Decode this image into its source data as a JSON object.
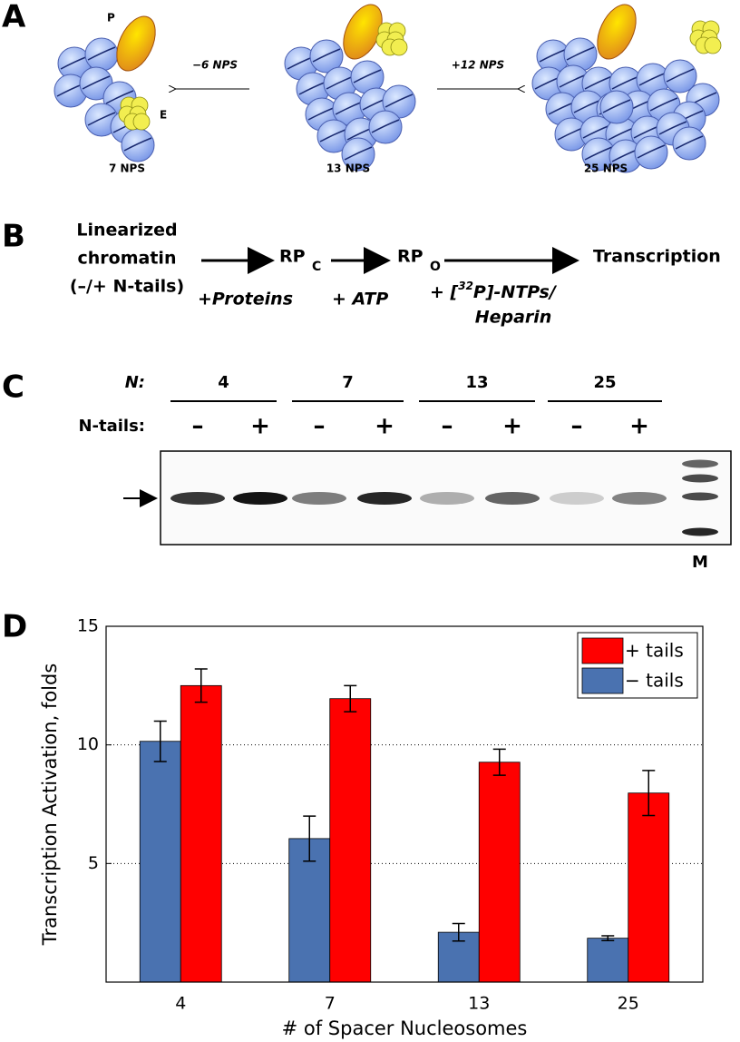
{
  "panel_a": {
    "label": "A",
    "p_label": "P",
    "e_label": "E",
    "left_arrow": "−6 NPS",
    "right_arrow": "+12 NPS",
    "constructs": [
      "7 NPS",
      "13 NPS",
      "25 NPS"
    ]
  },
  "panel_b": {
    "label": "B",
    "substrate": [
      "Linearized",
      "chromatin",
      "(–/+ N-tails)"
    ],
    "rpc": "RP",
    "rpc_sub": "C",
    "rpo": "RP",
    "rpo_sub": "O",
    "product": "Transcription",
    "step1": "+Proteins",
    "step2": "+ ATP",
    "step3_pre": "+ [",
    "step3_sup": "32",
    "step3_post": "P]-NTPs/",
    "step3_line2": "Heparin"
  },
  "panel_c": {
    "label": "C",
    "n_label": "N:",
    "n_values": [
      "4",
      "7",
      "13",
      "25"
    ],
    "tails_label": "N-tails:",
    "tails": [
      "–",
      "+",
      "–",
      "+",
      "–",
      "+",
      "–",
      "+"
    ],
    "marker": "M"
  },
  "panel_d": {
    "label": "D"
  },
  "chart_data": {
    "type": "bar",
    "x_label": "# of Spacer Nucleosomes",
    "y_label": "Transcription Activation, folds",
    "categories": [
      "4",
      "7",
      "13",
      "25"
    ],
    "series": [
      {
        "name": "− tails",
        "color": "#4a72b0",
        "values": [
          10.15,
          6.05,
          2.1,
          1.85
        ],
        "errors": [
          0.85,
          0.95,
          0.37,
          0.1
        ]
      },
      {
        "name": "+ tails",
        "color": "#ff0000",
        "values": [
          12.5,
          11.95,
          9.27,
          7.97
        ],
        "errors": [
          0.7,
          0.55,
          0.55,
          0.95
        ]
      }
    ],
    "legend_order": [
      1,
      0
    ],
    "legend": "upper right",
    "ylim": [
      0,
      15
    ],
    "yticks": [
      5,
      10,
      15
    ],
    "grid": true
  }
}
